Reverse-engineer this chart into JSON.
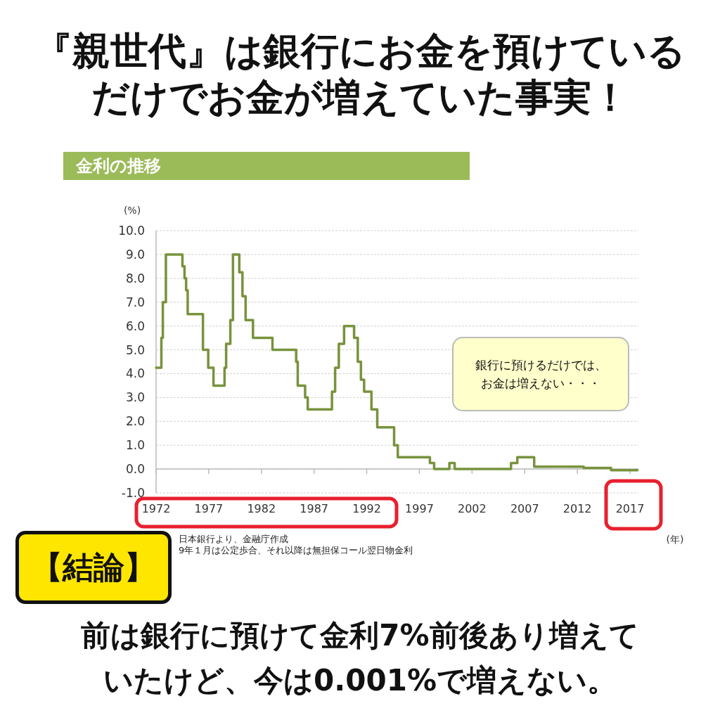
{
  "chart_data": {
    "type": "step",
    "title": "『親世代』は銀行にお金を預けているだけでお金が増えていた事実！",
    "subtitle": "金利の推移",
    "ylabel": "(%)",
    "xlabel": "(年)",
    "x": [
      1972.0,
      1972.5,
      1972.64,
      1972.93,
      1974.5,
      1974.7,
      1974.85,
      1975.0,
      1976.45,
      1976.95,
      1977.45,
      1978.5,
      1978.65,
      1979.05,
      1979.3,
      1979.9,
      1980.2,
      1980.5,
      1981.2,
      1983.05,
      1985.3,
      1985.45,
      1986.15,
      1986.4,
      1988.7,
      1989.0,
      1989.35,
      1989.85,
      1990.8,
      1991.15,
      1991.45,
      1991.75,
      1992.45,
      1993.0,
      1994.6,
      1994.95,
      1998.0,
      1998.4,
      1999.85,
      2000.35,
      2005.7,
      2006.3,
      2007.9,
      2012.6,
      2015.2,
      2017.7
    ],
    "series": [
      {
        "color": "#77933c",
        "values": [
          4.25,
          5.5,
          7.0,
          9.0,
          8.5,
          8.0,
          7.5,
          6.5,
          5.0,
          4.25,
          3.5,
          4.25,
          5.25,
          6.25,
          9.0,
          8.25,
          7.25,
          6.25,
          5.5,
          5.0,
          4.5,
          3.5,
          3.0,
          2.5,
          3.25,
          4.25,
          5.25,
          6.0,
          5.5,
          4.5,
          3.75,
          3.25,
          2.5,
          1.75,
          1.0,
          0.5,
          0.25,
          0.0,
          0.25,
          0.0,
          0.25,
          0.5,
          0.1,
          0.05,
          -0.05,
          -0.05
        ]
      }
    ],
    "xlim": [
      1972,
      2017.8
    ],
    "xticks": [
      1972,
      1977,
      1982,
      1987,
      1992,
      1997,
      2002,
      2007,
      2012,
      2017
    ],
    "ylim": [
      -1,
      10
    ],
    "yticks": [
      {
        "value": -1,
        "label": "-1.0"
      },
      {
        "value": 0,
        "label": "0.0"
      },
      {
        "value": 1,
        "label": "1.0"
      },
      {
        "value": 2,
        "label": "2.0"
      },
      {
        "value": 3,
        "label": "3.0"
      },
      {
        "value": 4,
        "label": "4.0"
      },
      {
        "value": 5,
        "label": "5.0"
      },
      {
        "value": 6,
        "label": "6.0"
      },
      {
        "value": 7,
        "label": "7.0"
      },
      {
        "value": 8,
        "label": "8.0"
      },
      {
        "value": 9,
        "label": "9.0"
      },
      {
        "value": 10,
        "label": "10.0"
      }
    ],
    "grid": "y",
    "line_style": "solid",
    "marker": "none",
    "annotations": [
      "銀行に預けるだけでは、お金は増えない・・・",
      "日本銀行より、金融庁作成",
      "9年１月は公定歩合、それ以降は無担保コール翌日物金利",
      "【結論】",
      "前は銀行に預けて金利7%前後あり増えていたけど、今は0.001%で増えない。"
    ]
  }
}
